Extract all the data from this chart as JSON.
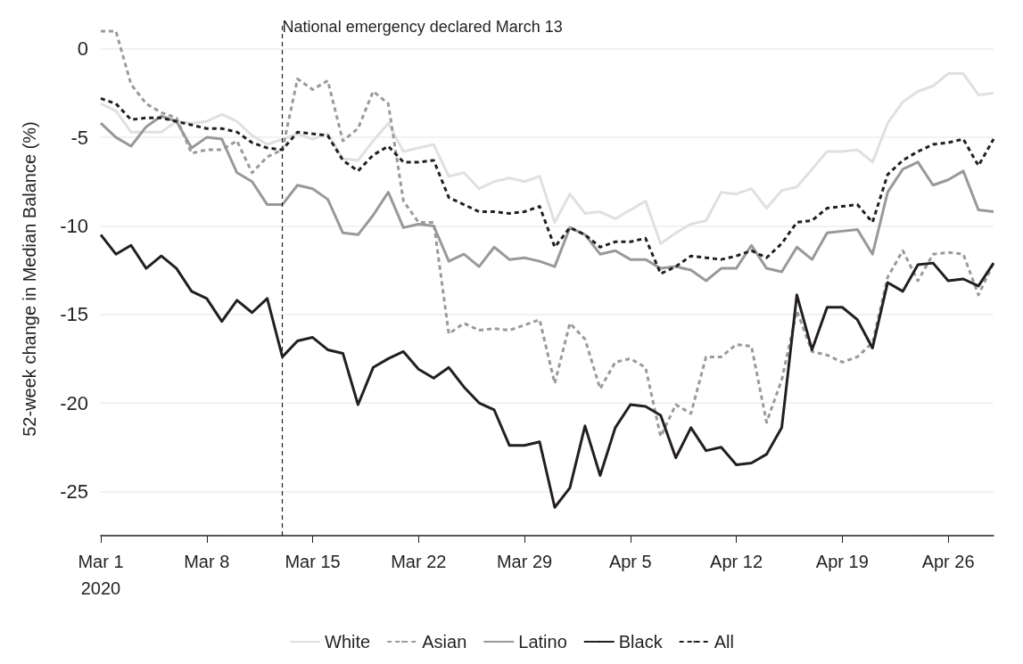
{
  "chart_data": {
    "type": "line",
    "ylabel": "52-week change in Median Balance (%)",
    "x": [
      "2020-03-01",
      "2020-03-02",
      "2020-03-03",
      "2020-03-04",
      "2020-03-05",
      "2020-03-06",
      "2020-03-07",
      "2020-03-08",
      "2020-03-09",
      "2020-03-10",
      "2020-03-11",
      "2020-03-12",
      "2020-03-13",
      "2020-03-14",
      "2020-03-15",
      "2020-03-16",
      "2020-03-17",
      "2020-03-18",
      "2020-03-19",
      "2020-03-20",
      "2020-03-21",
      "2020-03-22",
      "2020-03-23",
      "2020-03-24",
      "2020-03-25",
      "2020-03-26",
      "2020-03-27",
      "2020-03-28",
      "2020-03-29",
      "2020-03-30",
      "2020-03-31",
      "2020-04-01",
      "2020-04-02",
      "2020-04-03",
      "2020-04-04",
      "2020-04-05",
      "2020-04-06",
      "2020-04-07",
      "2020-04-08",
      "2020-04-09",
      "2020-04-10",
      "2020-04-11",
      "2020-04-12",
      "2020-04-13",
      "2020-04-14",
      "2020-04-15",
      "2020-04-16",
      "2020-04-17",
      "2020-04-18",
      "2020-04-19",
      "2020-04-20",
      "2020-04-21",
      "2020-04-22",
      "2020-04-23",
      "2020-04-24",
      "2020-04-25",
      "2020-04-26",
      "2020-04-27",
      "2020-04-28",
      "2020-04-29"
    ],
    "series": [
      {
        "name": "White",
        "color": "#e0e0e0",
        "line_style": "solid",
        "values": [
          -3.1,
          -3.5,
          -4.7,
          -4.7,
          -4.7,
          -4.1,
          -4.2,
          -4.1,
          -3.7,
          -4.1,
          -4.9,
          -5.4,
          -5.1,
          -4.8,
          -5.1,
          -4.8,
          -6.2,
          -6.3,
          -5.2,
          -4.2,
          -5.8,
          -5.6,
          -5.4,
          -7.2,
          -7.0,
          -7.9,
          -7.5,
          -7.3,
          -7.5,
          -7.2,
          -9.8,
          -8.2,
          -9.3,
          -9.2,
          -9.6,
          -9.1,
          -8.6,
          -11.0,
          -10.4,
          -9.9,
          -9.7,
          -8.1,
          -8.2,
          -7.9,
          -9.0,
          -8.0,
          -7.8,
          -6.8,
          -5.8,
          -5.8,
          -5.7,
          -6.4,
          -4.2,
          -3.0,
          -2.4,
          -2.1,
          -1.4,
          -1.4,
          -2.6,
          -2.5
        ]
      },
      {
        "name": "Asian",
        "color": "#9a9a9a",
        "line_style": "dashed",
        "values": [
          1.0,
          1.0,
          -2.0,
          -3.1,
          -3.6,
          -3.9,
          -5.9,
          -5.7,
          -5.7,
          -5.2,
          -7.0,
          -6.1,
          -5.7,
          -1.7,
          -2.3,
          -1.8,
          -5.2,
          -4.5,
          -2.4,
          -3.1,
          -8.6,
          -9.8,
          -9.8,
          -16.1,
          -15.5,
          -15.9,
          -15.8,
          -15.9,
          -15.6,
          -15.3,
          -18.9,
          -15.5,
          -16.4,
          -19.2,
          -17.7,
          -17.5,
          -18.0,
          -21.9,
          -20.1,
          -20.6,
          -17.4,
          -17.4,
          -16.7,
          -16.8,
          -21.1,
          -18.7,
          -14.8,
          -17.1,
          -17.3,
          -17.7,
          -17.4,
          -16.6,
          -12.9,
          -11.4,
          -13.1,
          -11.6,
          -11.5,
          -11.6,
          -13.9,
          -12.1
        ]
      },
      {
        "name": "Latino",
        "color": "#999999",
        "line_style": "solid",
        "values": [
          -4.2,
          -5.0,
          -5.5,
          -4.4,
          -3.8,
          -4.1,
          -5.6,
          -5.0,
          -5.1,
          -7.0,
          -7.5,
          -8.8,
          -8.8,
          -7.7,
          -7.9,
          -8.5,
          -10.4,
          -10.5,
          -9.4,
          -8.1,
          -10.1,
          -9.9,
          -10.0,
          -12.0,
          -11.6,
          -12.3,
          -11.2,
          -11.9,
          -11.8,
          -12.0,
          -12.3,
          -10.1,
          -10.5,
          -11.6,
          -11.4,
          -11.9,
          -11.9,
          -12.4,
          -12.3,
          -12.5,
          -13.1,
          -12.4,
          -12.4,
          -11.1,
          -12.4,
          -12.6,
          -11.2,
          -11.9,
          -10.4,
          -10.3,
          -10.2,
          -11.6,
          -8.1,
          -6.8,
          -6.4,
          -7.7,
          -7.4,
          -6.9,
          -9.1,
          -9.2
        ]
      },
      {
        "name": "Black",
        "color": "#231f20",
        "line_style": "solid",
        "values": [
          -10.5,
          -11.6,
          -11.1,
          -12.4,
          -11.7,
          -12.4,
          -13.7,
          -14.1,
          -15.4,
          -14.2,
          -14.9,
          -14.1,
          -17.4,
          -16.5,
          -16.3,
          -17.0,
          -17.2,
          -20.1,
          -18.0,
          -17.5,
          -17.1,
          -18.1,
          -18.6,
          -18.0,
          -19.1,
          -20.0,
          -20.4,
          -22.4,
          -22.4,
          -22.2,
          -25.9,
          -24.8,
          -21.3,
          -24.1,
          -21.4,
          -20.1,
          -20.2,
          -20.7,
          -23.1,
          -21.4,
          -22.7,
          -22.5,
          -23.5,
          -23.4,
          -22.9,
          -21.4,
          -13.9,
          -17.0,
          -14.6,
          -14.6,
          -15.3,
          -16.9,
          -13.2,
          -13.7,
          -12.2,
          -12.1,
          -13.1,
          -13.0,
          -13.4,
          -12.1
        ]
      },
      {
        "name": "All",
        "color": "#231f20",
        "line_style": "dashed",
        "values": [
          -2.8,
          -3.1,
          -4.0,
          -3.9,
          -3.9,
          -4.1,
          -4.3,
          -4.5,
          -4.5,
          -4.7,
          -5.3,
          -5.6,
          -5.7,
          -4.7,
          -4.8,
          -4.9,
          -6.3,
          -6.9,
          -6.0,
          -5.5,
          -6.4,
          -6.4,
          -6.3,
          -8.4,
          -8.8,
          -9.2,
          -9.2,
          -9.3,
          -9.2,
          -8.9,
          -11.2,
          -10.1,
          -10.5,
          -11.2,
          -10.9,
          -10.9,
          -10.7,
          -12.7,
          -12.3,
          -11.7,
          -11.8,
          -11.9,
          -11.7,
          -11.4,
          -11.8,
          -11.0,
          -9.8,
          -9.7,
          -9.0,
          -8.9,
          -8.8,
          -9.8,
          -7.1,
          -6.3,
          -5.8,
          -5.4,
          -5.3,
          -5.1,
          -6.6,
          -5.1
        ]
      }
    ],
    "xlim": [
      "2020-03-01",
      "2020-04-29"
    ],
    "xticks": [
      {
        "value": "2020-03-01",
        "label": "Mar 1\n2020"
      },
      {
        "value": "2020-03-08",
        "label": "Mar 8"
      },
      {
        "value": "2020-03-15",
        "label": "Mar 15"
      },
      {
        "value": "2020-03-22",
        "label": "Mar 22"
      },
      {
        "value": "2020-03-29",
        "label": "Mar 29"
      },
      {
        "value": "2020-04-05",
        "label": "Apr 5"
      },
      {
        "value": "2020-04-12",
        "label": "Apr 12"
      },
      {
        "value": "2020-04-19",
        "label": "Apr 19"
      },
      {
        "value": "2020-04-26",
        "label": "Apr 26"
      }
    ],
    "ylim": [
      -27.5,
      1.5
    ],
    "yticks": [
      -25,
      -20,
      -15,
      -10,
      -5,
      0
    ],
    "ref_lines": [
      {
        "axis": "x",
        "value": "2020-03-13",
        "label": "National emergency declared March 13",
        "color": "#231f20",
        "line_style": "dashed"
      }
    ],
    "grid": "y",
    "legend": "bottom",
    "marker": "none"
  }
}
